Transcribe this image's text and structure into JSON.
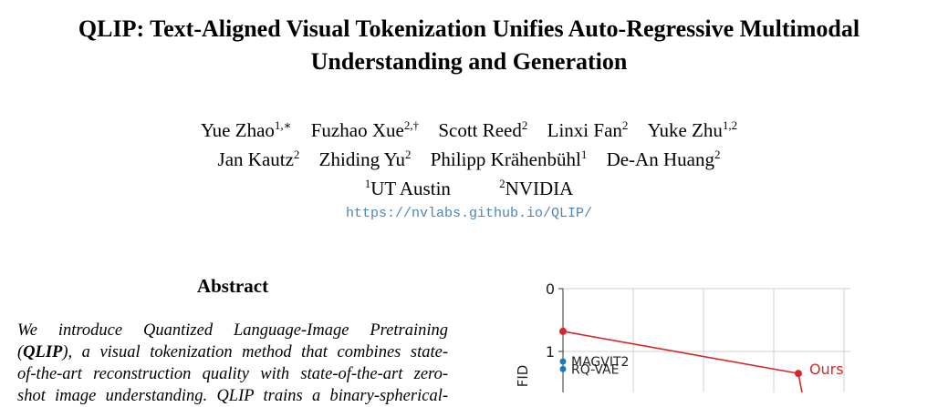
{
  "paper": {
    "title_line1": "QLIP: Text-Aligned Visual Tokenization Unifies Auto-Regressive Multimodal",
    "title_line2": "Understanding and Generation",
    "authors_row1": [
      {
        "name": "Yue Zhao",
        "sup": "1,∗"
      },
      {
        "name": "Fuzhao Xue",
        "sup": "2,†"
      },
      {
        "name": "Scott Reed",
        "sup": "2"
      },
      {
        "name": "Linxi Fan",
        "sup": "2"
      },
      {
        "name": "Yuke Zhu",
        "sup": "1,2"
      }
    ],
    "authors_row2": [
      {
        "name": "Jan Kautz",
        "sup": "2"
      },
      {
        "name": "Zhiding Yu",
        "sup": "2"
      },
      {
        "name": "Philipp Krähenbühl",
        "sup": "1"
      },
      {
        "name": "De-An Huang",
        "sup": "2"
      }
    ],
    "affiliations": [
      {
        "sup": "1",
        "name": "UT Austin"
      },
      {
        "sup": "2",
        "name": "NVIDIA"
      }
    ],
    "url": "https://nvlabs.github.io/QLIP/"
  },
  "abstract": {
    "heading": "Abstract",
    "line1": "We introduce Quantized Language-Image Pretraining",
    "line2_open": "(",
    "line2_bold": "QLIP",
    "line2_rest": "), a visual tokenization method that combines state-",
    "line3": "of-the-art reconstruction quality with state-of-the-art zero-",
    "line4": "shot image understanding. QLIP trains a binary-spherical-"
  },
  "chart_data": {
    "type": "scatter",
    "ylabel": "FID",
    "y_ticks": [
      "0",
      "1"
    ],
    "ylim": [
      0,
      1.8
    ],
    "x_gridlines": 4,
    "grid": true,
    "series": [
      {
        "name": "Ours",
        "color": "#d62728",
        "points": [
          {
            "x": 0.0,
            "y": 0.68
          },
          {
            "x": 3.35,
            "y": 1.35
          }
        ]
      },
      {
        "name": "",
        "color": "#1f77b4",
        "points": [
          {
            "x": 0.0,
            "y": 1.16,
            "label": "MAGVIT2"
          },
          {
            "x": 0.0,
            "y": 1.28,
            "label": "RQ-VAE"
          }
        ]
      }
    ]
  }
}
